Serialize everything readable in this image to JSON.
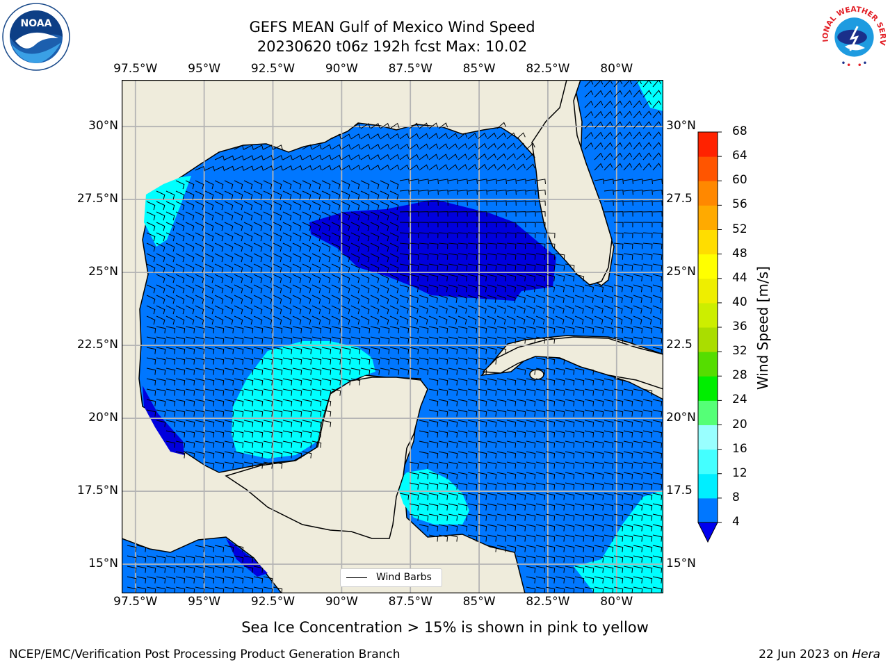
{
  "title": {
    "line1": "GEFS MEAN Gulf of Mexico Wind Speed",
    "line2": "20230620 t06z 192h fcst   Max: 10.02"
  },
  "map": {
    "lon_labels": [
      "97.5°W",
      "95°W",
      "92.5°W",
      "90°W",
      "87.5°W",
      "85°W",
      "82.5°W",
      "80°W"
    ],
    "lon_values": [
      -97.5,
      -95,
      -92.5,
      -90,
      -87.5,
      -85,
      -82.5,
      -80
    ],
    "lat_labels_left": [
      "30°N",
      "27.5°N",
      "25°N",
      "22.5°N",
      "20°N",
      "17.5°N",
      "15°N"
    ],
    "lat_labels_right": [
      "30°N",
      "27.5",
      "25°N",
      "22.5",
      "20°N",
      "17.5",
      "15°N"
    ],
    "lat_values": [
      30,
      27.5,
      25,
      22.5,
      20,
      17.5,
      15
    ],
    "lon_range": [
      -98,
      -78.3
    ],
    "lat_range": [
      14,
      31.6
    ],
    "land_color": "#efecdc",
    "grid": true,
    "legend_label": "Wind Barbs"
  },
  "colorbar": {
    "label": "Wind Speed [m/s]",
    "ticks": [
      "4",
      "8",
      "12",
      "16",
      "20",
      "24",
      "28",
      "32",
      "36",
      "40",
      "44",
      "48",
      "52",
      "56",
      "60",
      "64",
      "68"
    ],
    "colors": [
      "#0077ff",
      "#00eeff",
      "#44ffff",
      "#99ffff",
      "#55ff77",
      "#00ee00",
      "#55dd00",
      "#aadd00",
      "#ccee00",
      "#eeee00",
      "#ffff00",
      "#ffdd00",
      "#ffaa00",
      "#ff8800",
      "#ff5500",
      "#ff2200"
    ],
    "extend_color": "#0000ee"
  },
  "wind_fill_colors": {
    "4-8": "#0077ff",
    "below-4": "#0000dd",
    "8-12": "#00ffff",
    "12-16": "#44ffff"
  },
  "note": "Sea Ice Concentration > 15% is shown in pink to yellow",
  "footer": {
    "left": "NCEP/EMC/Verification Post Processing Product Generation Branch",
    "date": "22 Jun 2023 on ",
    "machine": "Hera"
  },
  "logos": {
    "noaa_text": "NOAA",
    "nws_text": "NATIONAL WEATHER SERVICE"
  }
}
